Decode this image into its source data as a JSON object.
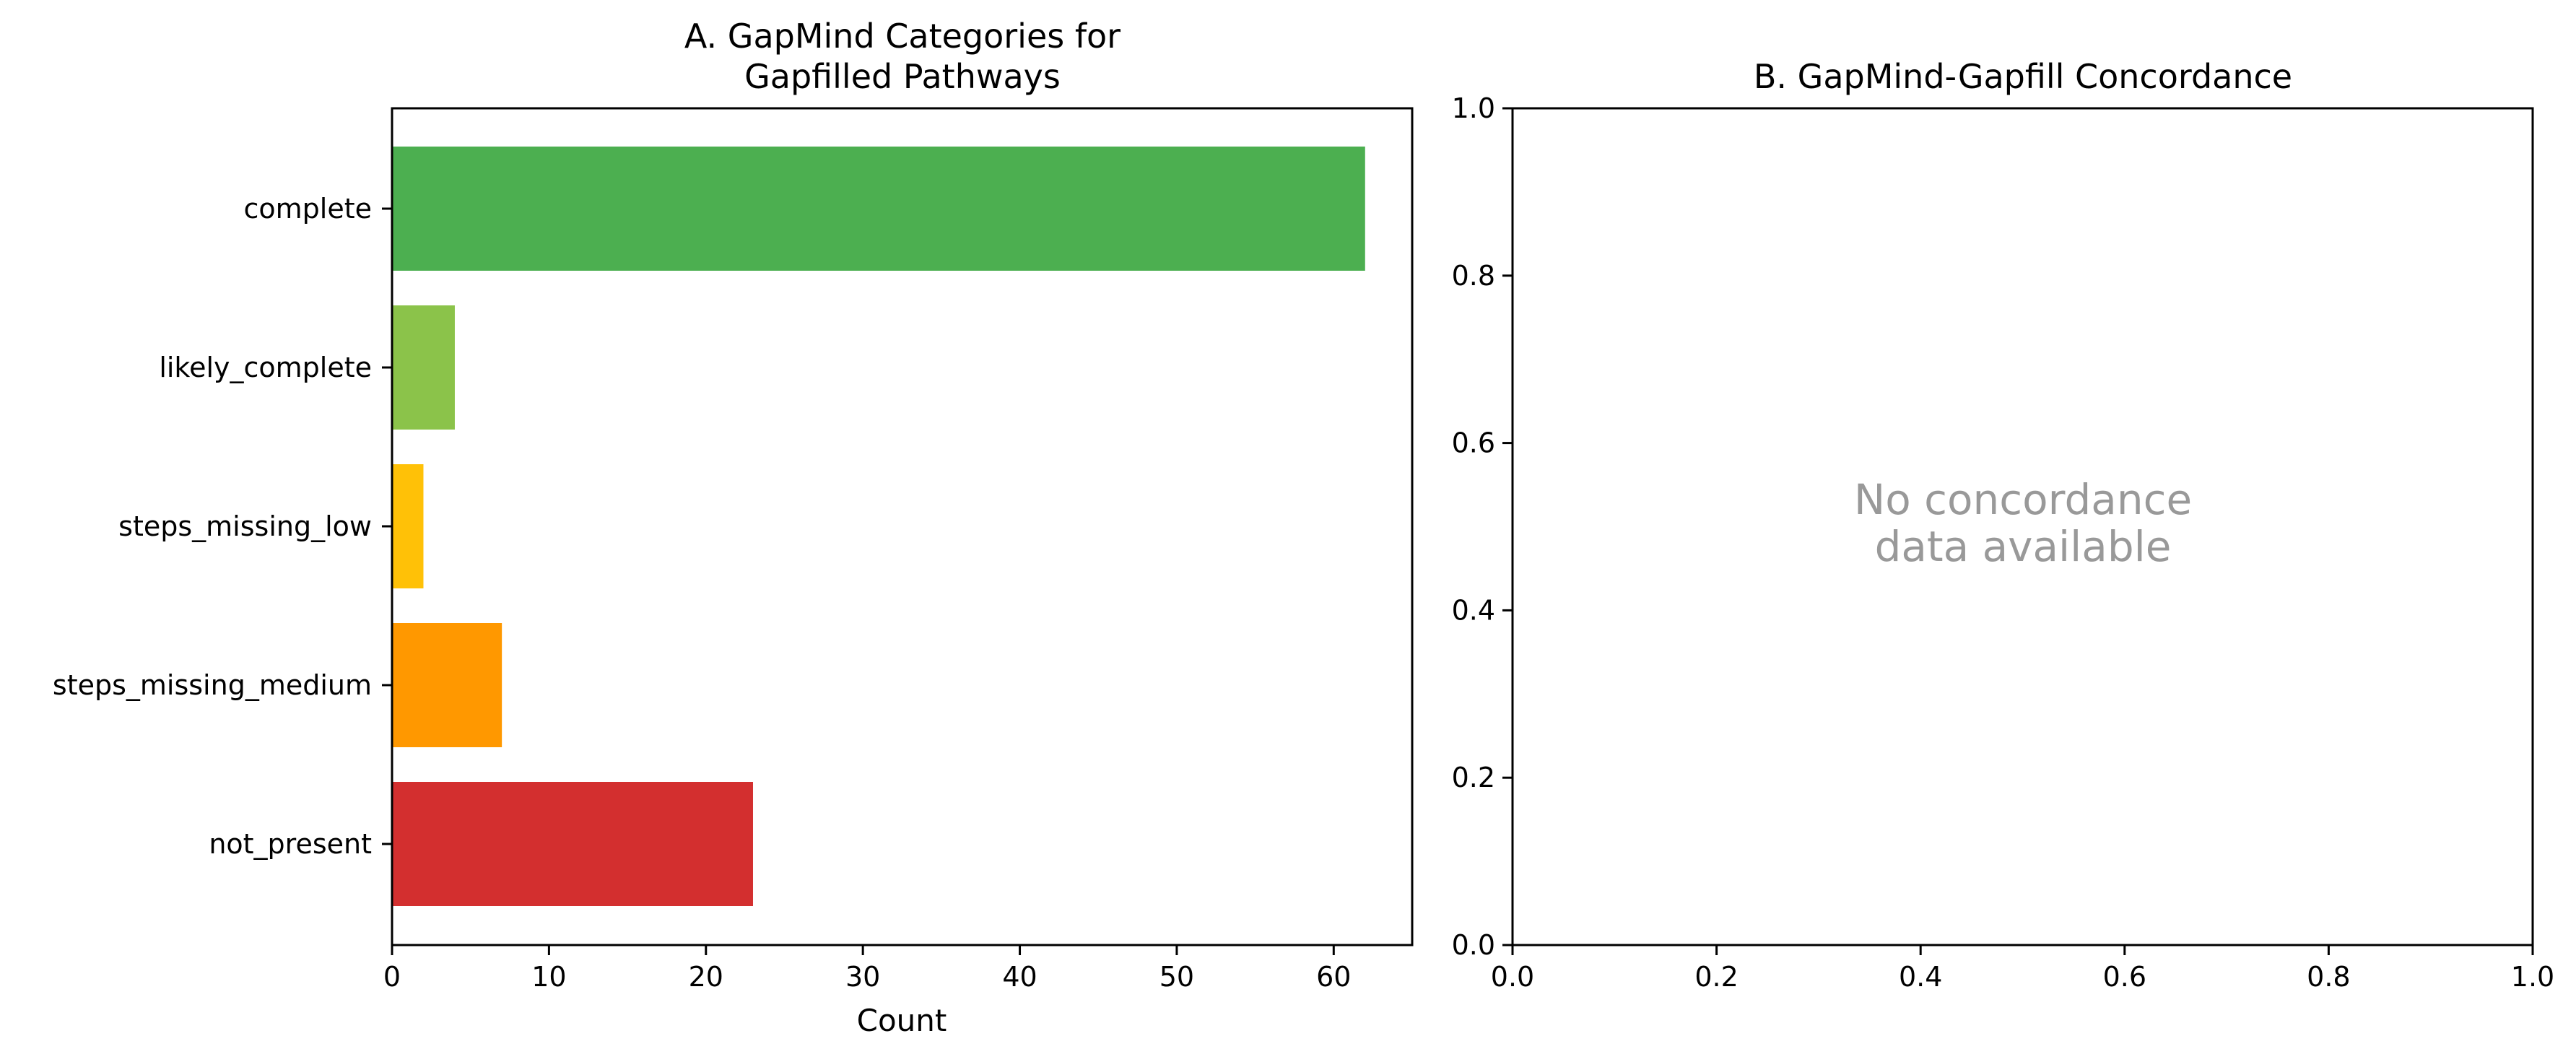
{
  "chart_data": [
    {
      "type": "bar",
      "orientation": "horizontal",
      "title": [
        "A. GapMind Categories for",
        "Gapfilled Pathways"
      ],
      "xlabel": "Count",
      "ylabel": "",
      "categories": [
        "complete",
        "likely_complete",
        "steps_missing_low",
        "steps_missing_medium",
        "not_present"
      ],
      "values": [
        62,
        4,
        2,
        7,
        23
      ],
      "colors": [
        "#4caf50",
        "#8bc34a",
        "#ffc107",
        "#ff9800",
        "#d32f2f"
      ],
      "xlim": [
        0,
        65
      ],
      "xticks": [
        0,
        10,
        20,
        30,
        40,
        50,
        60
      ],
      "grid": false
    },
    {
      "type": "scatter",
      "title": "B. GapMind-Gapfill Concordance",
      "xlabel": "",
      "ylabel": "",
      "xlim": [
        0.0,
        1.0
      ],
      "ylim": [
        0.0,
        1.0
      ],
      "xticks": [
        "0.0",
        "0.2",
        "0.4",
        "0.6",
        "0.8",
        "1.0"
      ],
      "yticks": [
        "0.0",
        "0.2",
        "0.4",
        "0.6",
        "0.8",
        "1.0"
      ],
      "annotation": [
        "No concordance",
        "data available"
      ],
      "grid": false
    }
  ]
}
